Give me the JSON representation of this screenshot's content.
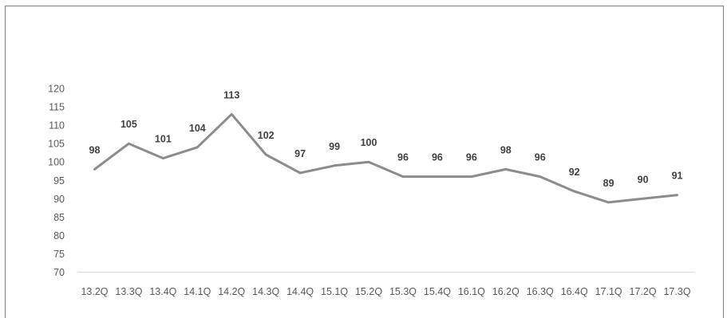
{
  "chart_data": {
    "type": "line",
    "title": "",
    "xlabel": "",
    "ylabel": "",
    "categories": [
      "13.2Q",
      "13.3Q",
      "13.4Q",
      "14.1Q",
      "14.2Q",
      "14.3Q",
      "14.4Q",
      "15.1Q",
      "15.2Q",
      "15.3Q",
      "15.4Q",
      "16.1Q",
      "16.2Q",
      "16.3Q",
      "16.4Q",
      "17.1Q",
      "17.2Q",
      "17.3Q"
    ],
    "series": [
      {
        "values": [
          98,
          105,
          101,
          104,
          113,
          102,
          97,
          99,
          100,
          96,
          96,
          96,
          98,
          96,
          92,
          89,
          90,
          91
        ]
      }
    ],
    "ylim": [
      70,
      120
    ],
    "yticks": [
      70,
      75,
      80,
      85,
      90,
      95,
      100,
      105,
      110,
      115,
      120
    ],
    "line_color": "#8c8c8c",
    "grid": false,
    "legend": "none",
    "data_labels": true
  }
}
